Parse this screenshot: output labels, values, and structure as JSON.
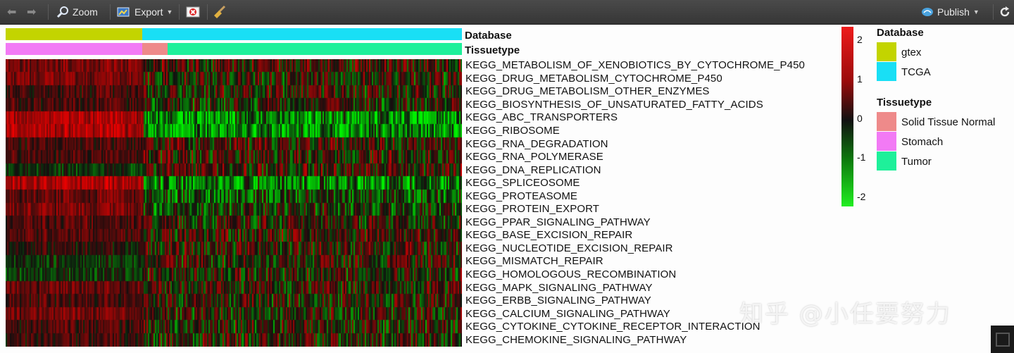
{
  "toolbar": {
    "zoom_label": "Zoom",
    "export_label": "Export",
    "publish_label": "Publish",
    "icons": [
      "back-arrow-icon",
      "forward-arrow-icon",
      "zoom-icon",
      "export-icon",
      "clear-icon",
      "broom-icon",
      "publish-icon",
      "refresh-icon"
    ]
  },
  "heatmap": {
    "annotation_labels": {
      "database": "Database",
      "tissuetype": "Tissuetype"
    },
    "database_segments": [
      {
        "group": "gtex",
        "fraction": 0.3
      },
      {
        "group": "TCGA",
        "fraction": 0.7
      }
    ],
    "tissuetype_segments": [
      {
        "group": "Stomach",
        "fraction": 0.3
      },
      {
        "group": "Solid Tissue Normal",
        "fraction": 0.056
      },
      {
        "group": "Tumor",
        "fraction": 0.644
      }
    ],
    "rows": [
      "KEGG_METABOLISM_OF_XENOBIOTICS_BY_CYTOCHROME_P450",
      "KEGG_DRUG_METABOLISM_CYTOCHROME_P450",
      "KEGG_DRUG_METABOLISM_OTHER_ENZYMES",
      "KEGG_BIOSYNTHESIS_OF_UNSATURATED_FATTY_ACIDS",
      "KEGG_ABC_TRANSPORTERS",
      "KEGG_RIBOSOME",
      "KEGG_RNA_DEGRADATION",
      "KEGG_RNA_POLYMERASE",
      "KEGG_DNA_REPLICATION",
      "KEGG_SPLICEOSOME",
      "KEGG_PROTEASOME",
      "KEGG_PROTEIN_EXPORT",
      "KEGG_PPAR_SIGNALING_PATHWAY",
      "KEGG_BASE_EXCISION_REPAIR",
      "KEGG_NUCLEOTIDE_EXCISION_REPAIR",
      "KEGG_MISMATCH_REPAIR",
      "KEGG_HOMOLOGOUS_RECOMBINATION",
      "KEGG_MAPK_SIGNALING_PATHWAY",
      "KEGG_ERBB_SIGNALING_PATHWAY",
      "KEGG_CALCIUM_SIGNALING_PATHWAY",
      "KEGG_CYTOKINE_CYTOKINE_RECEPTOR_INTERACTION",
      "KEGG_CHEMOKINE_SIGNALING_PATHWAY"
    ],
    "gtex_row_bias": [
      1,
      1,
      0.5,
      0.5,
      1.5,
      1.5,
      0.5,
      0.5,
      -0.3,
      1.5,
      0.8,
      1.0,
      0.6,
      0.6,
      0.2,
      -0.3,
      -0.3,
      0.8,
      0.5,
      0.9,
      0.5,
      0.4
    ],
    "tcga_row_bias": [
      0.3,
      0.1,
      0.1,
      0.0,
      -1.2,
      -1.2,
      0.3,
      0.2,
      0.3,
      -1.0,
      -0.5,
      -0.3,
      0.0,
      0.3,
      0.2,
      0.1,
      0.1,
      0.2,
      0.1,
      0.0,
      0.0,
      0.1
    ]
  },
  "colorbar": {
    "ticks": [
      "2",
      "1",
      "0",
      "-1",
      "-2"
    ],
    "range": [
      -2.2,
      2.2
    ],
    "colors": {
      "high": "#ee1b1b",
      "mid": "#111111",
      "low": "#22ee22"
    }
  },
  "legend": {
    "database_title": "Database",
    "database_items": [
      {
        "label": "gtex",
        "color": "#c3d400"
      },
      {
        "label": "TCGA",
        "color": "#19dff5"
      }
    ],
    "tissuetype_title": "Tissuetype",
    "tissuetype_items": [
      {
        "label": "Solid Tissue Normal",
        "color": "#ee8a8a"
      },
      {
        "label": "Stomach",
        "color": "#f27af5"
      },
      {
        "label": "Tumor",
        "color": "#1ef09a"
      }
    ]
  },
  "watermark": "知乎 @小任要努力"
}
